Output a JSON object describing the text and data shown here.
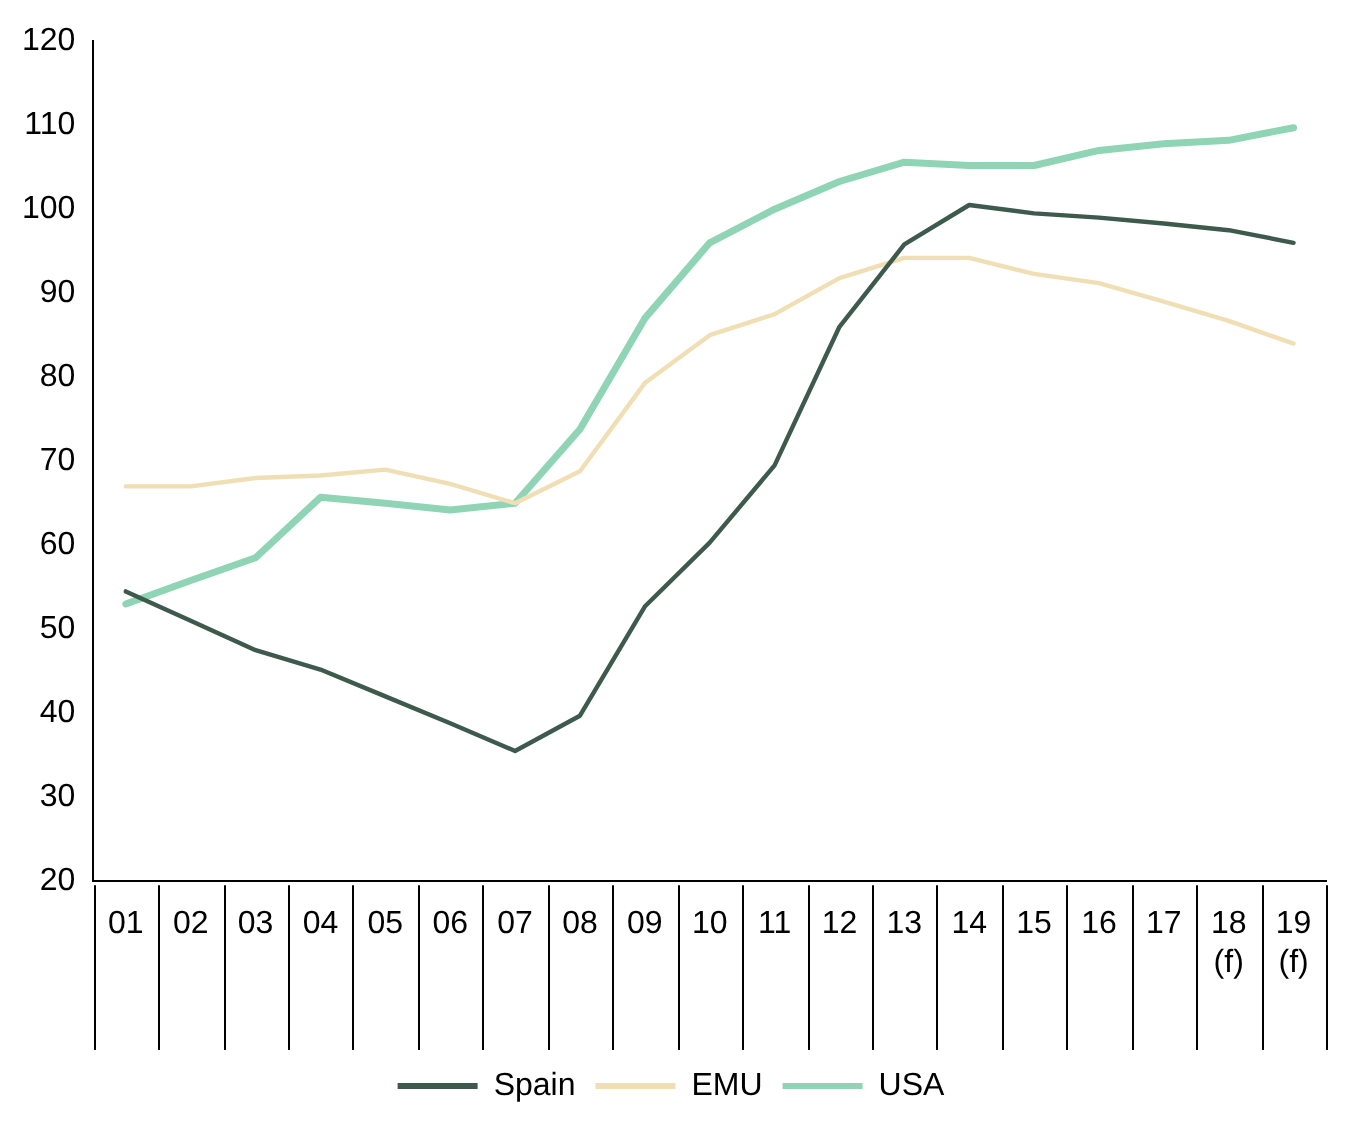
{
  "chart_data": {
    "type": "line",
    "categories": [
      "01",
      "02",
      "03",
      "04",
      "05",
      "06",
      "07",
      "08",
      "09",
      "10",
      "11",
      "12",
      "13",
      "14",
      "15",
      "16",
      "17",
      "18\n(f)",
      "19\n(f)"
    ],
    "series": [
      {
        "name": "Spain",
        "color": "#3d5a4c",
        "values": [
          54.5,
          51,
          47.5,
          45.2,
          42,
          38.8,
          35.5,
          39.7,
          52.7,
          60.3,
          69.5,
          86,
          95.8,
          100.5,
          99.5,
          99,
          98.3,
          97.5,
          96
        ]
      },
      {
        "name": "EMU",
        "color": "#f0dfb4",
        "values": [
          67,
          67,
          68,
          68.3,
          69,
          67.3,
          65,
          68.8,
          79.3,
          85,
          87.5,
          91.8,
          94.2,
          94.2,
          92.3,
          91.2,
          89,
          86.7,
          84
        ]
      },
      {
        "name": "USA",
        "color": "#8fd4b4",
        "values": [
          53,
          55.8,
          58.5,
          65.7,
          65,
          64.2,
          65,
          73.8,
          87,
          96,
          100,
          103.3,
          105.6,
          105.2,
          105.2,
          107,
          107.8,
          108.2,
          109.7
        ]
      }
    ],
    "ylim": [
      20,
      120
    ],
    "yticks": [
      20,
      30,
      40,
      50,
      60,
      70,
      80,
      90,
      100,
      110,
      120
    ],
    "legend": "bottom",
    "marker": "none",
    "line_style": "solid"
  }
}
